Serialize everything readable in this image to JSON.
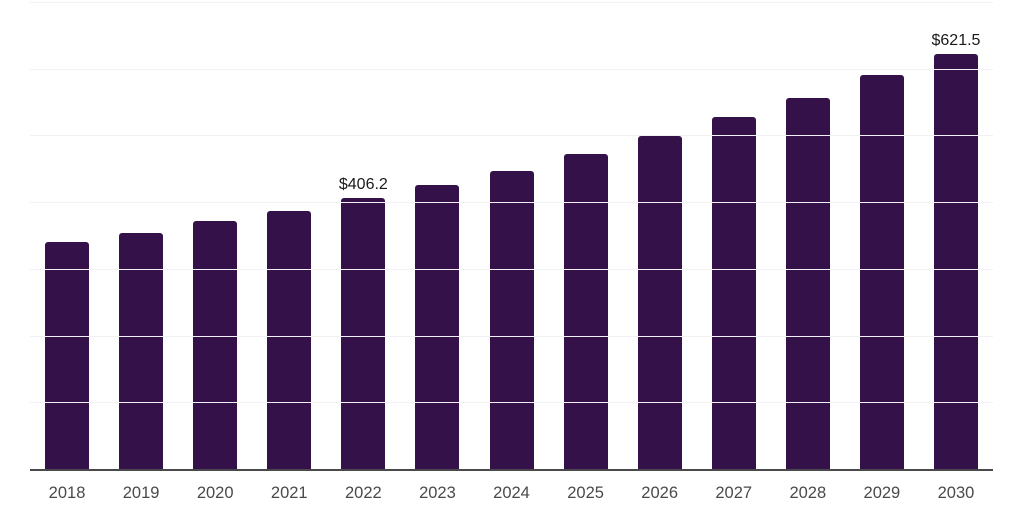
{
  "chart_data": {
    "type": "bar",
    "title": "",
    "xlabel": "",
    "ylabel": "",
    "categories": [
      "2018",
      "2019",
      "2020",
      "2021",
      "2022",
      "2023",
      "2024",
      "2025",
      "2026",
      "2027",
      "2028",
      "2029",
      "2030"
    ],
    "values": [
      341.0,
      353.5,
      371.5,
      386.5,
      406.2,
      425.0,
      446.5,
      472.0,
      498.5,
      528.0,
      556.0,
      591.0,
      621.5
    ],
    "data_labels": [
      "",
      "",
      "",
      "",
      "$406.2",
      "",
      "",
      "",
      "",
      "",
      "",
      "",
      "$621.5"
    ],
    "ylim": [
      0,
      700
    ],
    "gridline_values": [
      100,
      200,
      300,
      400,
      500,
      600,
      700
    ],
    "grid": true,
    "legend": false,
    "y_axis_labels_visible": false,
    "colors": {
      "bar": "#351149",
      "gridline": "#f2f2f4",
      "axis_line": "#4a4a4a",
      "tick_label": "#4a4a4a",
      "data_label": "#1a1a1a",
      "background": "#ffffff"
    }
  }
}
